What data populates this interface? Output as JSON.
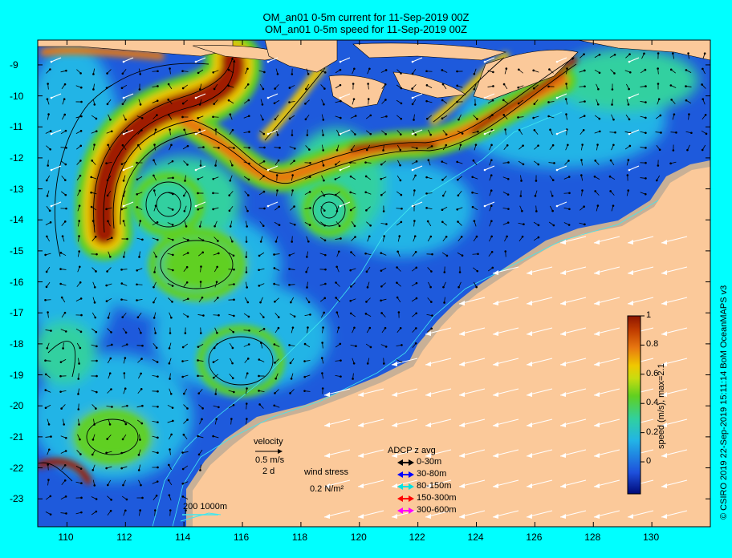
{
  "title_line1": "OM_an01 0-5m current for 11-Sep-2019 00Z",
  "title_line2": "OM_an01 0-5m speed for 11-Sep-2019 00Z",
  "credit": "© CSIRO 2019   22-Sep-2019 15:11:14 BoM OceanMAPS v3",
  "colorbar": {
    "label": "speed (m/s),  max=2.1",
    "ticks": [
      "1",
      "0.8",
      "0.6",
      "0.4",
      "0.2",
      "0"
    ],
    "tick_values": [
      1,
      0.8,
      0.6,
      0.4,
      0.2,
      0
    ]
  },
  "axes": {
    "x_ticks": [
      "110",
      "112",
      "114",
      "116",
      "118",
      "120",
      "122",
      "124",
      "126",
      "128",
      "130"
    ],
    "y_ticks": [
      "-9",
      "-10",
      "-11",
      "-12",
      "-13",
      "-14",
      "-15",
      "-16",
      "-17",
      "-18",
      "-19",
      "-20",
      "-21",
      "-22",
      "-23"
    ],
    "lon_range": [
      109,
      132
    ],
    "lat_range": [
      -8.2,
      -23.9
    ]
  },
  "legend": {
    "velocity_label": "velocity",
    "velocity_scale": "0.5 m/s",
    "velocity_duration": "2 d",
    "wind_label": "wind stress",
    "wind_value": "0.2 N/m²",
    "adcp_title": "ADCP z avg",
    "adcp_items": [
      {
        "label": "0-30m",
        "color": "#000000"
      },
      {
        "label": "30-80m",
        "color": "#0000ff"
      },
      {
        "label": "80-150m",
        "color": "#00e0e0"
      },
      {
        "label": "150-300m",
        "color": "#ff0000"
      },
      {
        "label": "300-600m",
        "color": "#ff00ff"
      }
    ],
    "isobaths": "200   1000m"
  },
  "colors": {
    "background": "#00ffff",
    "land": "#fbc99a",
    "shelf": "#c8b096",
    "ocean_slow": "#1e5adc",
    "ocean_mid": "#22b4e6",
    "current_fast": "#a01e00"
  }
}
